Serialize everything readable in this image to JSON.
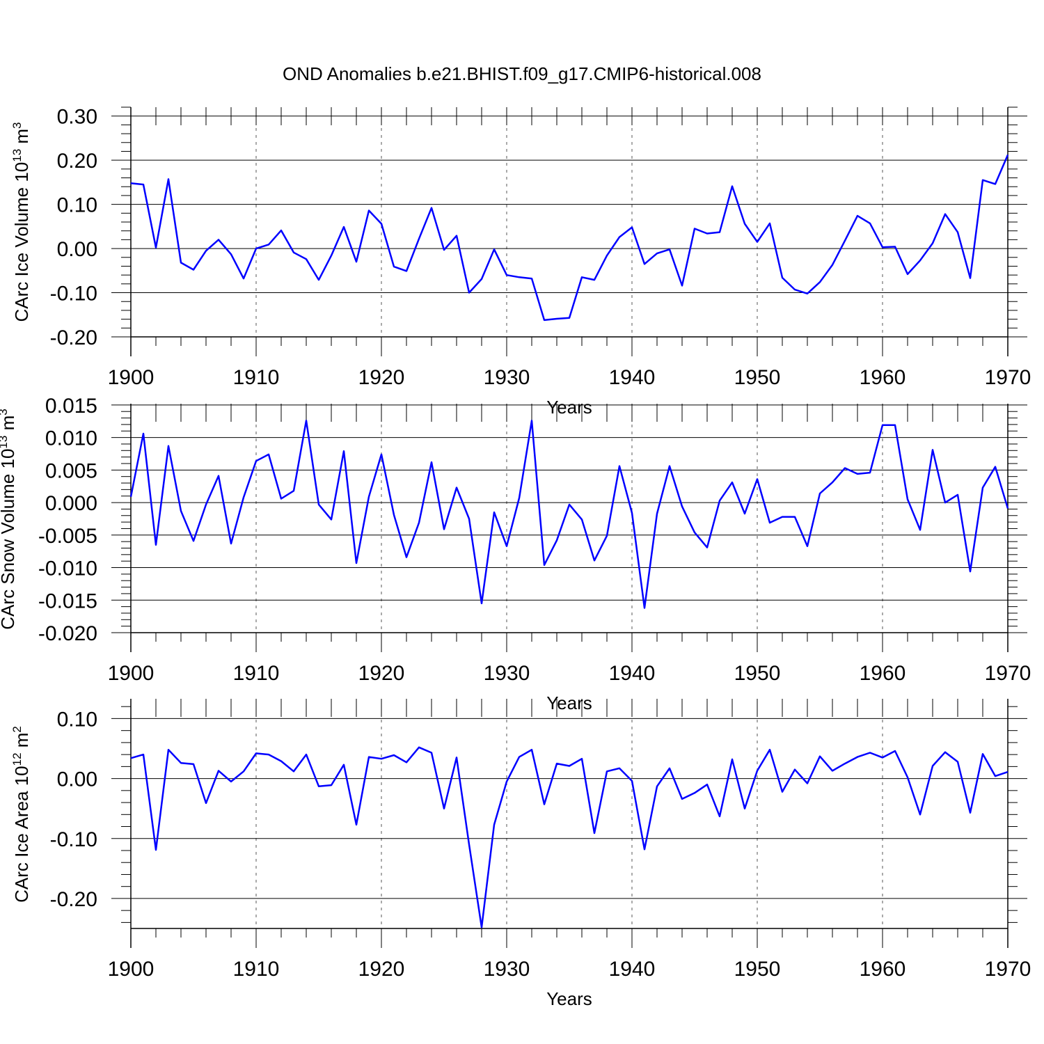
{
  "title": "OND Anomalies b.e21.BHIST.f09_g17.CMIP6-historical.008",
  "line_color": "#0000ff",
  "chart_data": [
    {
      "type": "line",
      "ylabel": "CArc Ice Volume 10",
      "ylabel_exp": "13",
      "ylabel_unit": " m",
      "ylabel_unit_exp": "3",
      "xlabel": "Years",
      "xlim": [
        1900,
        1970
      ],
      "ylim": [
        -0.2,
        0.32
      ],
      "yticks": [
        0.3,
        0.2,
        0.1,
        0.0,
        -0.1,
        -0.2
      ],
      "ytick_labels": [
        "0.30",
        "0.20",
        "0.10",
        "0.00",
        "-0.10",
        "-0.20"
      ],
      "xticks": [
        1900,
        1910,
        1920,
        1930,
        1940,
        1950,
        1960,
        1970
      ],
      "xtick_labels": [
        "1900",
        "1910",
        "1920",
        "1930",
        "1940",
        "1950",
        "1960",
        "1970"
      ],
      "series": [
        {
          "name": "CArc Ice Volume",
          "x": [
            1900,
            1901,
            1902,
            1903,
            1904,
            1905,
            1906,
            1907,
            1908,
            1909,
            1910,
            1911,
            1912,
            1913,
            1914,
            1915,
            1916,
            1917,
            1918,
            1919,
            1920,
            1921,
            1922,
            1923,
            1924,
            1925,
            1926,
            1927,
            1928,
            1929,
            1930,
            1931,
            1932,
            1933,
            1934,
            1935,
            1936,
            1937,
            1938,
            1939,
            1940,
            1941,
            1942,
            1943,
            1944,
            1945,
            1946,
            1947,
            1948,
            1949,
            1950,
            1951,
            1952,
            1953,
            1954,
            1955,
            1956,
            1957,
            1958,
            1959,
            1960,
            1961,
            1962,
            1963,
            1964,
            1965,
            1966,
            1967,
            1968,
            1969,
            1970
          ],
          "values": [
            0.148,
            0.145,
            0.002,
            0.157,
            -0.032,
            -0.048,
            -0.005,
            0.02,
            -0.013,
            -0.068,
            0.0,
            0.009,
            0.041,
            -0.009,
            -0.024,
            -0.071,
            -0.016,
            0.049,
            -0.03,
            0.086,
            0.056,
            -0.041,
            -0.051,
            0.022,
            0.092,
            -0.003,
            0.029,
            -0.1,
            -0.069,
            -0.002,
            -0.06,
            -0.065,
            -0.068,
            -0.162,
            -0.159,
            -0.157,
            -0.065,
            -0.071,
            -0.016,
            0.026,
            0.048,
            -0.035,
            -0.011,
            -0.002,
            -0.084,
            0.045,
            0.034,
            0.037,
            0.141,
            0.056,
            0.015,
            0.057,
            -0.066,
            -0.093,
            -0.102,
            -0.076,
            -0.037,
            0.018,
            0.074,
            0.057,
            0.003,
            0.004,
            -0.058,
            -0.027,
            0.012,
            0.078,
            0.037,
            -0.067,
            0.155,
            0.146,
            0.212
          ]
        }
      ]
    },
    {
      "type": "line",
      "ylabel": "CArc Snow Volume 10",
      "ylabel_exp": "13",
      "ylabel_unit": " m",
      "ylabel_unit_exp": "3",
      "xlabel": "Years",
      "xlim": [
        1900,
        1970
      ],
      "ylim": [
        -0.02,
        0.0152
      ],
      "yticks": [
        0.015,
        0.01,
        0.005,
        0.0,
        -0.005,
        -0.01,
        -0.015,
        -0.02
      ],
      "ytick_labels": [
        "0.015",
        "0.010",
        "0.005",
        "0.000",
        "-0.005",
        "-0.010",
        "-0.015",
        "-0.020"
      ],
      "xticks": [
        1900,
        1910,
        1920,
        1930,
        1940,
        1950,
        1960,
        1970
      ],
      "xtick_labels": [
        "1900",
        "1910",
        "1920",
        "1930",
        "1940",
        "1950",
        "1960",
        "1970"
      ],
      "series": [
        {
          "name": "CArc Snow Volume",
          "x": [
            1900,
            1901,
            1902,
            1903,
            1904,
            1905,
            1906,
            1907,
            1908,
            1909,
            1910,
            1911,
            1912,
            1913,
            1914,
            1915,
            1916,
            1917,
            1918,
            1919,
            1920,
            1921,
            1922,
            1923,
            1924,
            1925,
            1926,
            1927,
            1928,
            1929,
            1930,
            1931,
            1932,
            1933,
            1934,
            1935,
            1936,
            1937,
            1938,
            1939,
            1940,
            1941,
            1942,
            1943,
            1944,
            1945,
            1946,
            1947,
            1948,
            1949,
            1950,
            1951,
            1952,
            1953,
            1954,
            1955,
            1956,
            1957,
            1958,
            1959,
            1960,
            1961,
            1962,
            1963,
            1964,
            1965,
            1966,
            1967,
            1968,
            1969,
            1970
          ],
          "values": [
            0.0009,
            0.0106,
            -0.0065,
            0.0087,
            -0.0013,
            -0.0059,
            -0.0003,
            0.0041,
            -0.0063,
            0.0008,
            0.0064,
            0.0074,
            0.0006,
            0.0018,
            0.0126,
            -0.0003,
            -0.0026,
            0.0079,
            -0.0093,
            0.0009,
            0.0074,
            -0.0019,
            -0.0084,
            -0.0031,
            0.0062,
            -0.0041,
            0.0023,
            -0.0025,
            -0.0155,
            -0.0015,
            -0.0067,
            0.0007,
            0.0126,
            -0.0096,
            -0.0058,
            -0.0003,
            -0.0026,
            -0.0089,
            -0.0051,
            0.0056,
            -0.0016,
            -0.0162,
            -0.0017,
            0.0056,
            -0.0006,
            -0.0046,
            -0.0069,
            0.0003,
            0.0031,
            -0.0017,
            0.0036,
            -0.0031,
            -0.0022,
            -0.0022,
            -0.0067,
            0.0014,
            0.0031,
            0.0053,
            0.0044,
            0.0046,
            0.0119,
            0.0119,
            0.0005,
            -0.0042,
            0.0081,
            0.0,
            0.0012,
            -0.0106,
            0.0023,
            0.0055,
            -0.0009
          ]
        }
      ]
    },
    {
      "type": "line",
      "ylabel": "CArc Ice Area 10",
      "ylabel_exp": "12",
      "ylabel_unit": " m",
      "ylabel_unit_exp": "2",
      "xlabel": "Years",
      "xlim": [
        1900,
        1970
      ],
      "ylim": [
        -0.25,
        0.133
      ],
      "yticks": [
        0.1,
        0.0,
        -0.1,
        -0.2
      ],
      "ytick_labels": [
        "0.10",
        "0.00",
        "-0.10",
        "-0.20"
      ],
      "xticks": [
        1900,
        1910,
        1920,
        1930,
        1940,
        1950,
        1960,
        1970
      ],
      "xtick_labels": [
        "1900",
        "1910",
        "1920",
        "1930",
        "1940",
        "1950",
        "1960",
        "1970"
      ],
      "series": [
        {
          "name": "CArc Ice Area",
          "x": [
            1900,
            1901,
            1902,
            1903,
            1904,
            1905,
            1906,
            1907,
            1908,
            1909,
            1910,
            1911,
            1912,
            1913,
            1914,
            1915,
            1916,
            1917,
            1918,
            1919,
            1920,
            1921,
            1922,
            1923,
            1924,
            1925,
            1926,
            1927,
            1928,
            1929,
            1930,
            1931,
            1932,
            1933,
            1934,
            1935,
            1936,
            1937,
            1938,
            1939,
            1940,
            1941,
            1942,
            1943,
            1944,
            1945,
            1946,
            1947,
            1948,
            1949,
            1950,
            1951,
            1952,
            1953,
            1954,
            1955,
            1956,
            1957,
            1958,
            1959,
            1960,
            1961,
            1962,
            1963,
            1964,
            1965,
            1966,
            1967,
            1968,
            1969,
            1970
          ],
          "values": [
            0.034,
            0.04,
            -0.119,
            0.048,
            0.026,
            0.024,
            -0.041,
            0.013,
            -0.005,
            0.012,
            0.042,
            0.04,
            0.029,
            0.012,
            0.04,
            -0.013,
            -0.011,
            0.023,
            -0.077,
            0.036,
            0.033,
            0.039,
            0.027,
            0.052,
            0.043,
            -0.05,
            0.035,
            -0.11,
            -0.248,
            -0.077,
            -0.005,
            0.036,
            0.048,
            -0.043,
            0.025,
            0.021,
            0.033,
            -0.091,
            0.012,
            0.017,
            -0.004,
            -0.118,
            -0.013,
            0.017,
            -0.034,
            -0.024,
            -0.01,
            -0.063,
            0.032,
            -0.05,
            0.013,
            0.048,
            -0.022,
            0.015,
            -0.008,
            0.037,
            0.013,
            0.025,
            0.036,
            0.043,
            0.035,
            0.046,
            0.002,
            -0.06,
            0.021,
            0.044,
            0.028,
            -0.057,
            0.041,
            0.004,
            0.011
          ]
        }
      ]
    }
  ]
}
